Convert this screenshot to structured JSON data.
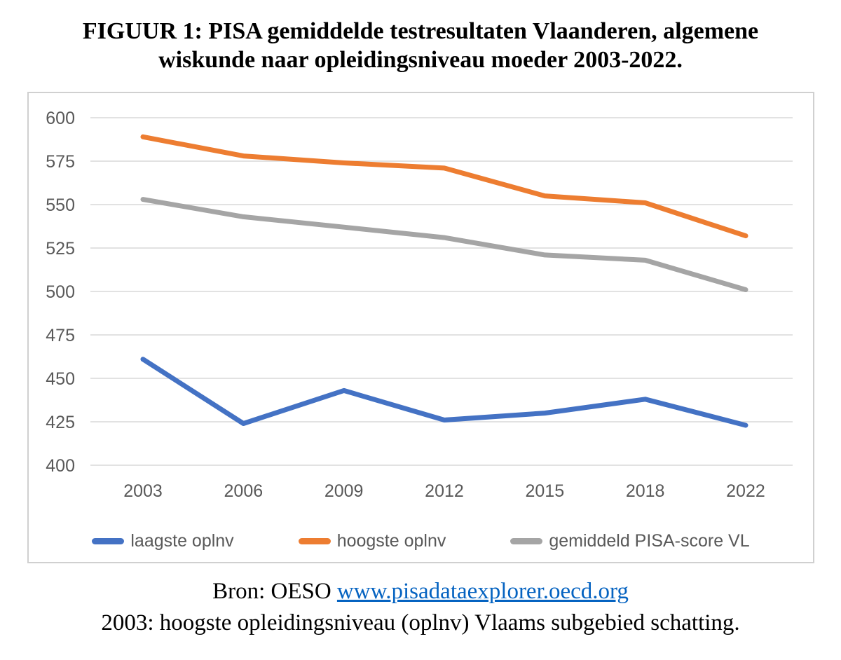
{
  "title": {
    "line1": "FIGUUR 1: PISA gemiddelde testresultaten Vlaanderen, algemene",
    "line2": "wiskunde naar opleidingsniveau moeder 2003-2022."
  },
  "chart_data": {
    "type": "line",
    "title": "FIGUUR 1: PISA gemiddelde testresultaten Vlaanderen, algemene wiskunde naar opleidingsniveau moeder 2003-2022.",
    "categories": [
      "2003",
      "2006",
      "2009",
      "2012",
      "2015",
      "2018",
      "2022"
    ],
    "series": [
      {
        "name": "laagste oplnv",
        "color": "#4472C4",
        "values": [
          461,
          424,
          443,
          426,
          430,
          438,
          423
        ]
      },
      {
        "name": "hoogste oplnv",
        "color": "#ED7D31",
        "values": [
          589,
          578,
          574,
          571,
          555,
          551,
          532
        ]
      },
      {
        "name": "gemiddeld PISA-score VL",
        "color": "#A5A5A5",
        "values": [
          553,
          543,
          537,
          531,
          521,
          518,
          501
        ]
      }
    ],
    "xlabel": "",
    "ylabel": "",
    "ylim": [
      400,
      600
    ],
    "ytick_step": 25,
    "grid": true,
    "legend_position": "bottom",
    "gridline_color": "#D9D9D9",
    "tick_label_color": "#595959"
  },
  "footer": {
    "source_prefix": "Bron: OESO",
    "source_link": "www.pisadataexplorer.oecd.org",
    "note": "2003: hoogste opleidingsniveau (oplnv) Vlaams subgebied schatting."
  }
}
